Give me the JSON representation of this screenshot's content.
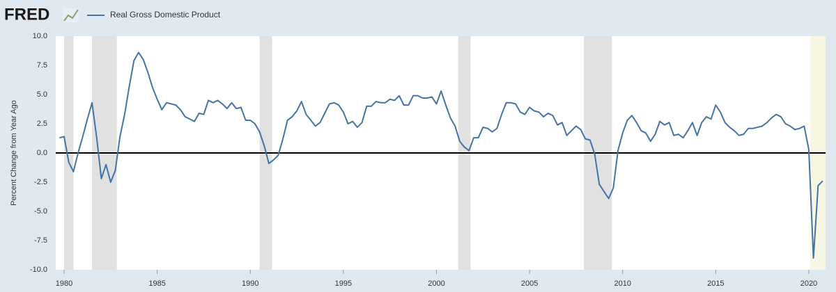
{
  "header": {
    "logo": "FRED"
  },
  "chart_data": {
    "type": "line",
    "y_label": "Percent Change from Year Ago",
    "x": [
      1979.75,
      1980,
      1980.25,
      1980.5,
      1980.75,
      1981,
      1981.25,
      1981.5,
      1981.75,
      1982,
      1982.25,
      1982.5,
      1982.75,
      1983,
      1983.25,
      1983.5,
      1983.75,
      1984,
      1984.25,
      1984.5,
      1984.75,
      1985,
      1985.25,
      1985.5,
      1985.75,
      1986,
      1986.25,
      1986.5,
      1986.75,
      1987,
      1987.25,
      1987.5,
      1987.75,
      1988,
      1988.25,
      1988.5,
      1988.75,
      1989,
      1989.25,
      1989.5,
      1989.75,
      1990,
      1990.25,
      1990.5,
      1990.75,
      1991,
      1991.25,
      1991.5,
      1991.75,
      1992,
      1992.25,
      1992.5,
      1992.75,
      1993,
      1993.25,
      1993.5,
      1993.75,
      1994,
      1994.25,
      1994.5,
      1994.75,
      1995,
      1995.25,
      1995.5,
      1995.75,
      1996,
      1996.25,
      1996.5,
      1996.75,
      1997,
      1997.25,
      1997.5,
      1997.75,
      1998,
      1998.25,
      1998.5,
      1998.75,
      1999,
      1999.25,
      1999.5,
      1999.75,
      2000,
      2000.25,
      2000.5,
      2000.75,
      2001,
      2001.25,
      2001.5,
      2001.75,
      2002,
      2002.25,
      2002.5,
      2002.75,
      2003,
      2003.25,
      2003.5,
      2003.75,
      2004,
      2004.25,
      2004.5,
      2004.75,
      2005,
      2005.25,
      2005.5,
      2005.75,
      2006,
      2006.25,
      2006.5,
      2006.75,
      2007,
      2007.25,
      2007.5,
      2007.75,
      2008,
      2008.25,
      2008.5,
      2008.75,
      2009,
      2009.25,
      2009.5,
      2009.75,
      2010,
      2010.25,
      2010.5,
      2010.75,
      2011,
      2011.25,
      2011.5,
      2011.75,
      2012,
      2012.25,
      2012.5,
      2012.75,
      2013,
      2013.25,
      2013.5,
      2013.75,
      2014,
      2014.25,
      2014.5,
      2014.75,
      2015,
      2015.25,
      2015.5,
      2015.75,
      2016,
      2016.25,
      2016.5,
      2016.75,
      2017,
      2017.25,
      2017.5,
      2017.75,
      2018,
      2018.25,
      2018.5,
      2018.75,
      2019,
      2019.25,
      2019.5,
      2019.75,
      2020,
      2020.25,
      2020.5,
      2020.75
    ],
    "series": [
      {
        "name": "Real Gross Domestic Product",
        "color": "#4572a7",
        "values": [
          1.3,
          1.4,
          -0.8,
          -1.6,
          0.0,
          1.4,
          2.9,
          4.3,
          1.3,
          -2.2,
          -1.0,
          -2.5,
          -1.5,
          1.4,
          3.3,
          5.7,
          7.9,
          8.6,
          8.0,
          6.9,
          5.6,
          4.6,
          3.7,
          4.3,
          4.2,
          4.1,
          3.7,
          3.1,
          2.9,
          2.7,
          3.4,
          3.3,
          4.5,
          4.3,
          4.5,
          4.2,
          3.8,
          4.3,
          3.8,
          3.9,
          2.8,
          2.8,
          2.5,
          1.8,
          0.6,
          -0.9,
          -0.6,
          -0.2,
          1.2,
          2.8,
          3.1,
          3.6,
          4.4,
          3.3,
          2.8,
          2.3,
          2.6,
          3.4,
          4.2,
          4.3,
          4.1,
          3.5,
          2.5,
          2.7,
          2.2,
          2.6,
          4.0,
          4.0,
          4.4,
          4.3,
          4.3,
          4.6,
          4.5,
          4.9,
          4.1,
          4.1,
          4.9,
          4.9,
          4.7,
          4.7,
          4.8,
          4.2,
          5.3,
          4.1,
          3.0,
          2.3,
          1.0,
          0.5,
          0.2,
          1.3,
          1.3,
          2.2,
          2.1,
          1.8,
          2.1,
          3.3,
          4.3,
          4.3,
          4.2,
          3.5,
          3.3,
          3.9,
          3.6,
          3.5,
          3.1,
          3.4,
          3.2,
          2.4,
          2.6,
          1.5,
          1.9,
          2.3,
          2.0,
          1.2,
          1.1,
          -0.1,
          -2.7,
          -3.3,
          -3.9,
          -3.0,
          0.2,
          1.7,
          2.8,
          3.2,
          2.6,
          1.9,
          1.7,
          1.0,
          1.6,
          2.7,
          2.4,
          2.6,
          1.5,
          1.6,
          1.3,
          1.9,
          2.6,
          1.5,
          2.6,
          3.1,
          2.9,
          4.1,
          3.5,
          2.6,
          2.2,
          1.9,
          1.5,
          1.6,
          2.1,
          2.1,
          2.2,
          2.3,
          2.6,
          3.0,
          3.3,
          3.1,
          2.5,
          2.3,
          2.0,
          2.1,
          2.3,
          0.3,
          -9.0,
          -2.8,
          -2.4
        ]
      }
    ],
    "recessions": [
      [
        1980,
        1980.5
      ],
      [
        1981.5,
        1982.83
      ],
      [
        1990.5,
        1991.17
      ],
      [
        2001.17,
        2001.83
      ],
      [
        2007.92,
        2009.42
      ],
      [
        2020.08,
        2020.9
      ]
    ],
    "xlim": [
      1979.55,
      2020.9
    ],
    "xticks": [
      1980,
      1985,
      1990,
      1995,
      2000,
      2005,
      2010,
      2015,
      2020
    ],
    "ylim": [
      -10,
      10
    ],
    "yticks": [
      {
        "value": 10,
        "label": "10.0"
      },
      7.5,
      {
        "value": 5,
        "label": "5.0"
      },
      2.5,
      {
        "value": 0,
        "label": "0.0"
      },
      -2.5,
      {
        "value": -5,
        "label": "-5.0"
      },
      -7.5,
      {
        "value": -10,
        "label": "-10.0"
      }
    ],
    "grid": false
  }
}
